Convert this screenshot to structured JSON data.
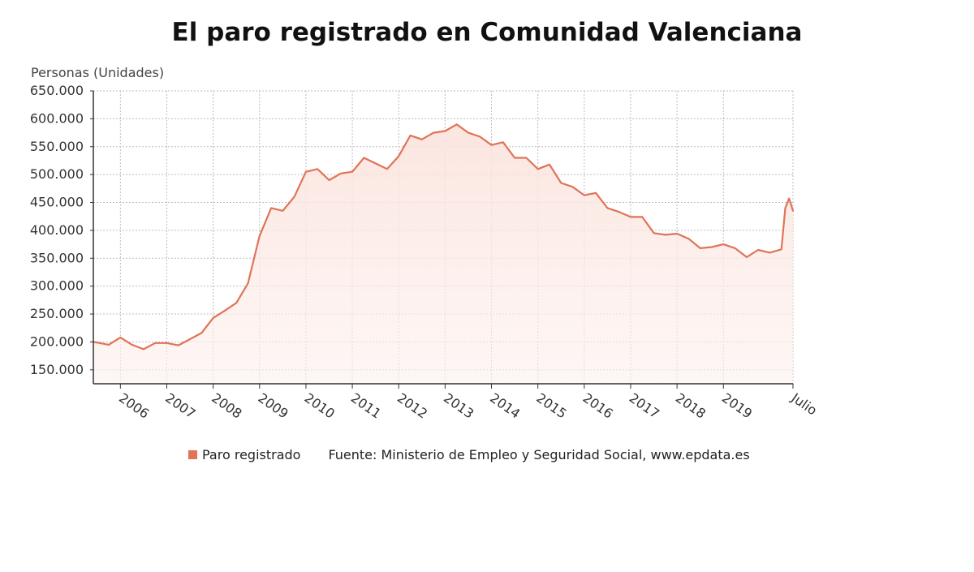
{
  "chart_data": {
    "type": "area",
    "title": "El paro registrado en Comunidad Valenciana",
    "ylabel": "Personas (Unidades)",
    "xlabel": "",
    "ylim": [
      125000,
      650000
    ],
    "yticks": [
      150000,
      200000,
      250000,
      300000,
      350000,
      400000,
      450000,
      500000,
      550000,
      600000,
      650000
    ],
    "ytick_labels": [
      "150.000",
      "200.000",
      "250.000",
      "300.000",
      "350.000",
      "400.000",
      "450.000",
      "500.000",
      "550.000",
      "600.000",
      "650.000"
    ],
    "x_range": [
      "2005-06",
      "2020-07"
    ],
    "xticks": [
      "2006-01",
      "2007-01",
      "2008-01",
      "2009-01",
      "2010-01",
      "2011-01",
      "2012-01",
      "2013-01",
      "2014-01",
      "2015-01",
      "2016-01",
      "2017-01",
      "2018-01",
      "2019-01",
      "2020-07"
    ],
    "xtick_labels": [
      "2006",
      "2007",
      "2008",
      "2009",
      "2010",
      "2011",
      "2012",
      "2013",
      "2014",
      "2015",
      "2016",
      "2017",
      "2018",
      "2019",
      "Julio"
    ],
    "grid": true,
    "legend_position": "bottom",
    "color": "#e07358",
    "series": [
      {
        "name": "Paro registrado",
        "x": [
          "2005-06",
          "2005-10",
          "2006-01",
          "2006-04",
          "2006-07",
          "2006-10",
          "2007-01",
          "2007-04",
          "2007-07",
          "2007-10",
          "2008-01",
          "2008-04",
          "2008-07",
          "2008-10",
          "2009-01",
          "2009-04",
          "2009-07",
          "2009-10",
          "2010-01",
          "2010-04",
          "2010-07",
          "2010-10",
          "2011-01",
          "2011-04",
          "2011-07",
          "2011-10",
          "2012-01",
          "2012-04",
          "2012-07",
          "2012-10",
          "2013-01",
          "2013-04",
          "2013-07",
          "2013-10",
          "2014-01",
          "2014-04",
          "2014-07",
          "2014-10",
          "2015-01",
          "2015-04",
          "2015-07",
          "2015-10",
          "2016-01",
          "2016-04",
          "2016-07",
          "2016-10",
          "2017-01",
          "2017-04",
          "2017-07",
          "2017-10",
          "2018-01",
          "2018-04",
          "2018-07",
          "2018-10",
          "2019-01",
          "2019-04",
          "2019-07",
          "2019-10",
          "2020-01",
          "2020-04",
          "2020-05",
          "2020-06",
          "2020-07"
        ],
        "values": [
          200000,
          195000,
          208000,
          195000,
          187000,
          198000,
          198000,
          194000,
          205000,
          216000,
          243000,
          256000,
          270000,
          305000,
          390000,
          440000,
          435000,
          460000,
          505000,
          510000,
          490000,
          502000,
          505000,
          530000,
          520000,
          510000,
          533000,
          570000,
          563000,
          575000,
          578000,
          590000,
          575000,
          568000,
          553000,
          558000,
          530000,
          530000,
          510000,
          518000,
          485000,
          478000,
          463000,
          467000,
          440000,
          433000,
          424000,
          424000,
          395000,
          392000,
          394000,
          385000,
          368000,
          370000,
          375000,
          368000,
          352000,
          365000,
          360000,
          366000,
          440000,
          457000,
          435000
        ]
      }
    ]
  },
  "legend": {
    "series_label": "Paro registrado",
    "source": "Fuente: Ministerio de Empleo y Seguridad Social, www.epdata.es"
  }
}
